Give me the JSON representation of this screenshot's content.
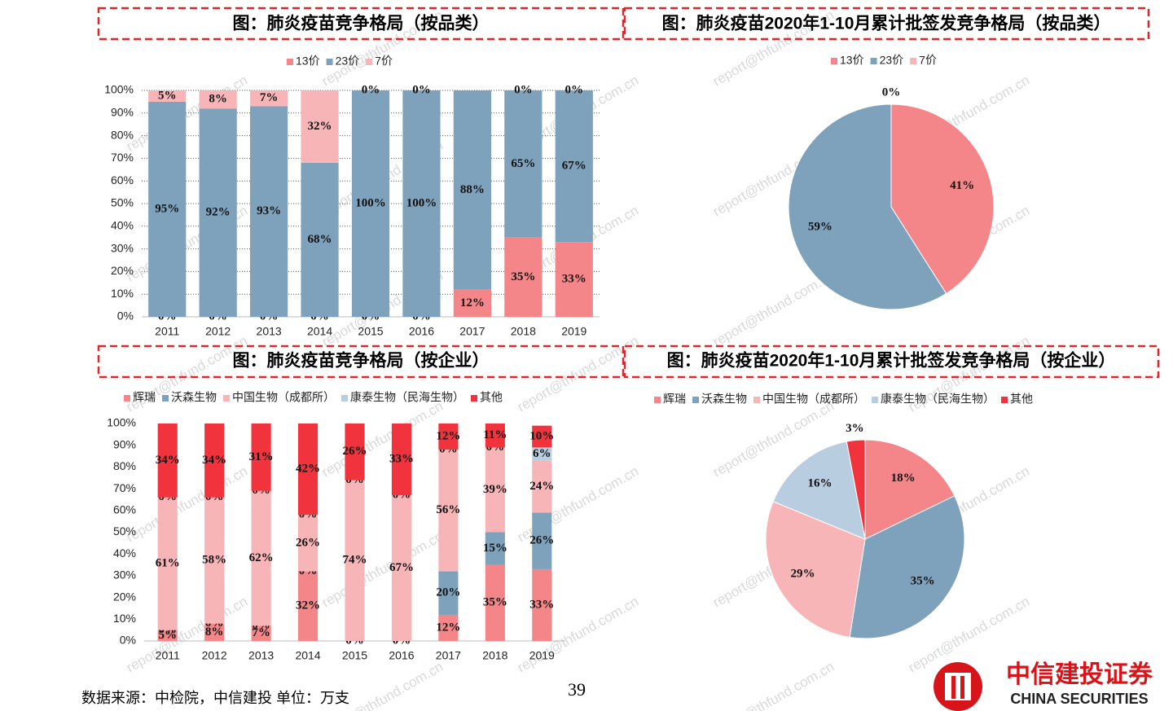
{
  "chart_data": [
    {
      "type": "stacked_bar",
      "title": "图：肺炎疫苗竞争格局（按品类）",
      "categories": [
        "2011",
        "2012",
        "2013",
        "2014",
        "2015",
        "2016",
        "2017",
        "2018",
        "2019"
      ],
      "series": [
        {
          "name": "13价",
          "color": "#f4868a",
          "values": [
            0,
            0,
            0,
            0,
            0,
            0,
            12,
            35,
            33
          ],
          "value_labels": [
            "0%",
            "0%",
            "0%",
            "0%",
            "0%",
            "0%",
            "12%",
            "35%",
            "33%"
          ]
        },
        {
          "name": "23价",
          "color": "#7fa2bc",
          "values": [
            95,
            92,
            93,
            68,
            100,
            100,
            88,
            65,
            67
          ],
          "value_labels": [
            "95%",
            "92%",
            "93%",
            "68%",
            "100%",
            "100%",
            "88%",
            "65%",
            "67%"
          ]
        },
        {
          "name": "7价",
          "color": "#f8b5b8",
          "values": [
            5,
            8,
            7,
            32,
            0,
            0,
            null,
            0,
            0
          ],
          "value_labels": [
            "5%",
            "8%",
            "7%",
            "32%",
            "0%",
            "0%",
            null,
            "0%",
            "0%"
          ]
        }
      ],
      "ylim": [
        0,
        100
      ],
      "yticks": [
        {
          "value": 0,
          "label": "0%"
        },
        {
          "value": 10,
          "label": "10%"
        },
        {
          "value": 20,
          "label": "20%"
        },
        {
          "value": 30,
          "label": "30%"
        },
        {
          "value": 40,
          "label": "40%"
        },
        {
          "value": 50,
          "label": "50%"
        },
        {
          "value": 60,
          "label": "60%"
        },
        {
          "value": 70,
          "label": "70%"
        },
        {
          "value": 80,
          "label": "80%"
        },
        {
          "value": 90,
          "label": "90%"
        },
        {
          "value": 100,
          "label": "100%"
        }
      ],
      "grid": true
    },
    {
      "type": "pie",
      "title": "图：肺炎疫苗2020年1-10月累计批签发竞争格局（按品类）",
      "categories": [
        "13价",
        "23价",
        "7价"
      ],
      "colors": [
        "#f4868a",
        "#7fa2bc",
        "#f8b5b8"
      ],
      "values": [
        41,
        59,
        0
      ],
      "value_labels": [
        "41%",
        "59%",
        "0%"
      ]
    },
    {
      "type": "stacked_bar",
      "title": "图：肺炎疫苗竞争格局（按企业）",
      "categories": [
        "2011",
        "2012",
        "2013",
        "2014",
        "2015",
        "2016",
        "2017",
        "2018",
        "2019"
      ],
      "series": [
        {
          "name": "辉瑞",
          "color": "#f4868a",
          "values": [
            5,
            8,
            7,
            32,
            0,
            0,
            12,
            35,
            33
          ],
          "value_labels": [
            "5%",
            "8%",
            "7%",
            "32%",
            "0%",
            "0%",
            "12%",
            "35%",
            "33%"
          ]
        },
        {
          "name": "沃森生物",
          "color": "#7fa2bc",
          "values": [
            0,
            0,
            0,
            0,
            null,
            null,
            20,
            15,
            26
          ],
          "value_labels": [
            "0%",
            "0%",
            "0%",
            "0%",
            null,
            null,
            "20%",
            "15%",
            "26%"
          ]
        },
        {
          "name": "中国生物（成都所）",
          "color": "#f8b5b8",
          "values": [
            61,
            58,
            62,
            26,
            74,
            67,
            56,
            39,
            24
          ],
          "value_labels": [
            "61%",
            "58%",
            "62%",
            "26%",
            "74%",
            "67%",
            "56%",
            "39%",
            "24%"
          ]
        },
        {
          "name": "康泰生物（民海生物）",
          "color": "#b8cde0",
          "values": [
            0,
            0,
            0,
            0,
            0,
            0,
            0,
            0,
            6
          ],
          "value_labels": [
            "0%",
            "0%",
            "0%",
            "0%",
            "0%",
            "0%",
            "0%",
            "0%",
            "6%"
          ]
        },
        {
          "name": "其他",
          "color": "#f0333d",
          "values": [
            34,
            34,
            31,
            42,
            26,
            33,
            12,
            11,
            10
          ],
          "value_labels": [
            "34%",
            "34%",
            "31%",
            "42%",
            "26%",
            "33%",
            "12%",
            "11%",
            "10%"
          ]
        }
      ],
      "ylim": [
        0,
        100
      ],
      "yticks": [
        {
          "value": 0,
          "label": "0%"
        },
        {
          "value": 10,
          "label": "10%"
        },
        {
          "value": 20,
          "label": "20%"
        },
        {
          "value": 30,
          "label": "30%"
        },
        {
          "value": 40,
          "label": "40%"
        },
        {
          "value": 50,
          "label": "50%"
        },
        {
          "value": 60,
          "label": "60%"
        },
        {
          "value": 70,
          "label": "70%"
        },
        {
          "value": 80,
          "label": "80%"
        },
        {
          "value": 90,
          "label": "90%"
        },
        {
          "value": 100,
          "label": "100%"
        }
      ],
      "grid": false
    },
    {
      "type": "pie",
      "title": "图：肺炎疫苗2020年1-10月累计批签发竞争格局（按企业）",
      "categories": [
        "辉瑞",
        "沃森生物",
        "中国生物（成都所）",
        "康泰生物（民海生物）",
        "其他"
      ],
      "colors": [
        "#f4868a",
        "#7fa2bc",
        "#f8b5b8",
        "#b8cde0",
        "#f0333d"
      ],
      "values": [
        18,
        35,
        29,
        16,
        3
      ],
      "value_labels": [
        "18%",
        "35%",
        "29%",
        "16%",
        "3%"
      ]
    }
  ],
  "source": "数据来源：中检院，中信建投 单位：万支",
  "page_number": "39",
  "logo": {
    "name": "中信建投证券",
    "english": "CHINA SECURITIES"
  },
  "watermark": "report@thfund.com.cn"
}
